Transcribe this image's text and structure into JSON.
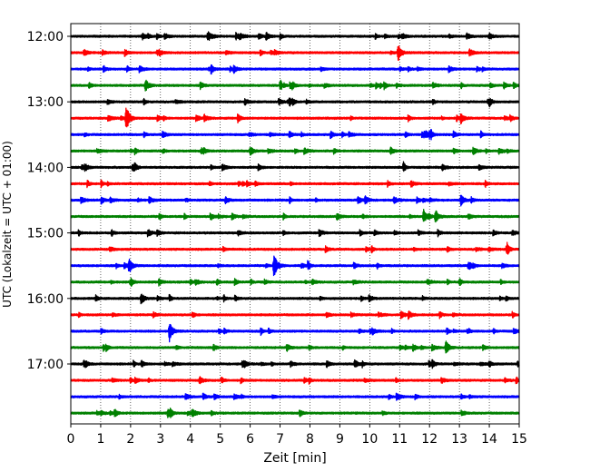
{
  "chart_data": {
    "type": "line",
    "title": "",
    "xlabel": "Zeit  [min]",
    "ylabel": "UTC (Lokalzeit = UTC + 01:00)",
    "xlim": [
      0,
      15
    ],
    "x_ticks": [
      "0",
      "1",
      "2",
      "3",
      "4",
      "5",
      "6",
      "7",
      "8",
      "9",
      "10",
      "11",
      "12",
      "13",
      "14",
      "15"
    ],
    "y_ticks": [
      "12:00",
      "13:00",
      "14:00",
      "15:00",
      "16:00",
      "17:00"
    ],
    "grid": "vertical dotted",
    "trace_interval_minutes": 15,
    "color_cycle": [
      "#000000",
      "#ff0000",
      "#0000ff",
      "#008000"
    ],
    "traces": [
      {
        "start": "12:00",
        "color": "#000000",
        "events": [
          {
            "t": 2.4,
            "amp": 0.35
          },
          {
            "t": 14.0,
            "amp": 0.45
          }
        ]
      },
      {
        "start": "12:15",
        "color": "#ff0000",
        "events": [
          {
            "t": 10.95,
            "amp": 1.0
          }
        ]
      },
      {
        "start": "12:30",
        "color": "#0000ff",
        "events": []
      },
      {
        "start": "12:45",
        "color": "#008000",
        "events": [
          {
            "t": 2.5,
            "amp": 0.7
          }
        ]
      },
      {
        "start": "13:00",
        "color": "#000000",
        "events": []
      },
      {
        "start": "13:15",
        "color": "#ff0000",
        "events": [
          {
            "t": 1.85,
            "amp": 1.2
          },
          {
            "t": 13.05,
            "amp": 0.6
          }
        ]
      },
      {
        "start": "13:30",
        "color": "#0000ff",
        "events": [
          {
            "t": 12.0,
            "amp": 0.35
          }
        ]
      },
      {
        "start": "13:45",
        "color": "#008000",
        "events": [
          {
            "t": 6.0,
            "amp": 0.55
          },
          {
            "t": 10.7,
            "amp": 0.4
          }
        ]
      },
      {
        "start": "14:00",
        "color": "#000000",
        "events": []
      },
      {
        "start": "14:15",
        "color": "#ff0000",
        "events": []
      },
      {
        "start": "14:30",
        "color": "#0000ff",
        "events": [
          {
            "t": 9.85,
            "amp": 0.45
          },
          {
            "t": 13.05,
            "amp": 0.6
          }
        ]
      },
      {
        "start": "14:45",
        "color": "#008000",
        "events": [
          {
            "t": 11.8,
            "amp": 0.85
          },
          {
            "t": 12.2,
            "amp": 0.75
          }
        ]
      },
      {
        "start": "15:00",
        "color": "#000000",
        "events": [
          {
            "t": 5.6,
            "amp": 0.3
          }
        ]
      },
      {
        "start": "15:15",
        "color": "#ff0000",
        "events": []
      },
      {
        "start": "15:30",
        "color": "#0000ff",
        "events": [
          {
            "t": 1.95,
            "amp": 0.9
          },
          {
            "t": 6.8,
            "amp": 1.2
          }
        ]
      },
      {
        "start": "15:45",
        "color": "#008000",
        "events": []
      },
      {
        "start": "16:00",
        "color": "#000000",
        "events": [
          {
            "t": 2.35,
            "amp": 0.4
          }
        ]
      },
      {
        "start": "16:15",
        "color": "#ff0000",
        "events": []
      },
      {
        "start": "16:30",
        "color": "#0000ff",
        "events": [
          {
            "t": 3.3,
            "amp": 1.2
          }
        ]
      },
      {
        "start": "16:45",
        "color": "#008000",
        "events": [
          {
            "t": 12.55,
            "amp": 0.8
          }
        ]
      },
      {
        "start": "17:00",
        "color": "#000000",
        "events": [
          {
            "t": 9.5,
            "amp": 0.55
          },
          {
            "t": 14.0,
            "amp": 0.35
          }
        ]
      },
      {
        "start": "17:15",
        "color": "#ff0000",
        "events": []
      },
      {
        "start": "17:30",
        "color": "#0000ff",
        "events": []
      },
      {
        "start": "17:45",
        "color": "#008000",
        "events": []
      }
    ]
  }
}
